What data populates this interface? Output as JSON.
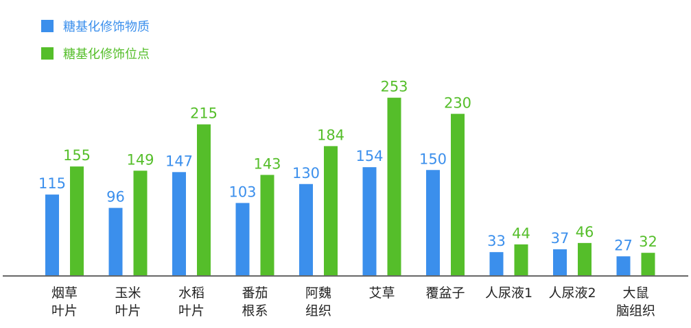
{
  "chart_data": {
    "type": "bar",
    "title": "",
    "xlabel": "",
    "ylabel": "",
    "legend_position": "top-left",
    "grid": false,
    "ylim": [
      0,
      260
    ],
    "categories": [
      [
        "烟草",
        "叶片"
      ],
      [
        "玉米",
        "叶片"
      ],
      [
        "水稻",
        "叶片"
      ],
      [
        "番茄",
        "根系"
      ],
      [
        "阿魏",
        "组织"
      ],
      [
        "艾草"
      ],
      [
        "覆盆子"
      ],
      [
        "人尿液1"
      ],
      [
        "人尿液2"
      ],
      [
        "大鼠",
        "脑组织"
      ]
    ],
    "series": [
      {
        "name": "糖基化修饰物质",
        "color": "#3b8fec",
        "values": [
          115,
          96,
          147,
          103,
          130,
          154,
          150,
          33,
          37,
          27
        ]
      },
      {
        "name": "糖基化修饰位点",
        "color": "#55be2a",
        "values": [
          155,
          149,
          215,
          143,
          184,
          253,
          230,
          44,
          46,
          32
        ]
      }
    ]
  }
}
